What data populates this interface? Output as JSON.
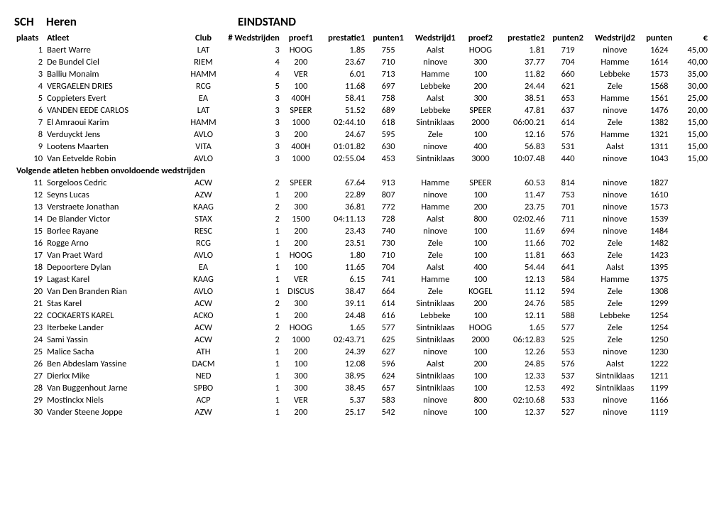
{
  "title": {
    "code": "SCH",
    "group": "Heren",
    "standing": "EINDSTAND"
  },
  "columns": [
    "plaats",
    "Atleet",
    "Club",
    "# Wedstrijden",
    "proef1",
    "prestatie1",
    "punten1",
    "Wedstrijd1",
    "proef2",
    "prestatie2",
    "punten2",
    "Wedstrijd2",
    "punten",
    "€"
  ],
  "section_label": "Volgende atleten hebben onvoldoende wedstrijden",
  "rows_top": [
    {
      "plaats": "1",
      "atleet": "Baert Warre",
      "club": "LAT",
      "wed": "3",
      "p1": "HOOG",
      "pr1": "1.85",
      "pt1": "755",
      "w1": "Aalst",
      "p2": "HOOG",
      "pr2": "1.81",
      "pt2": "719",
      "w2": "ninove",
      "punten": "1624",
      "eur": "45,00"
    },
    {
      "plaats": "2",
      "atleet": "De Bundel Ciel",
      "club": "RIEM",
      "wed": "4",
      "p1": "200",
      "pr1": "23.67",
      "pt1": "710",
      "w1": "ninove",
      "p2": "300",
      "pr2": "37.77",
      "pt2": "704",
      "w2": "Hamme",
      "punten": "1614",
      "eur": "40,00"
    },
    {
      "plaats": "3",
      "atleet": "Balliu Monaim",
      "club": "HAMM",
      "wed": "4",
      "p1": "VER",
      "pr1": "6.01",
      "pt1": "713",
      "w1": "Hamme",
      "p2": "100",
      "pr2": "11.82",
      "pt2": "660",
      "w2": "Lebbeke",
      "punten": "1573",
      "eur": "35,00"
    },
    {
      "plaats": "4",
      "atleet": "VERGAELEN DRIES",
      "club": "RCG",
      "wed": "5",
      "p1": "100",
      "pr1": "11.68",
      "pt1": "697",
      "w1": "Lebbeke",
      "p2": "200",
      "pr2": "24.44",
      "pt2": "621",
      "w2": "Zele",
      "punten": "1568",
      "eur": "30,00"
    },
    {
      "plaats": "5",
      "atleet": "Coppieters Evert",
      "club": "EA",
      "wed": "3",
      "p1": "400H",
      "pr1": "58.41",
      "pt1": "758",
      "w1": "Aalst",
      "p2": "300",
      "pr2": "38.51",
      "pt2": "653",
      "w2": "Hamme",
      "punten": "1561",
      "eur": "25,00"
    },
    {
      "plaats": "6",
      "atleet": "VANDEN EEDE CARLOS",
      "club": "LAT",
      "wed": "3",
      "p1": "SPEER",
      "pr1": "51.52",
      "pt1": "689",
      "w1": "Lebbeke",
      "p2": "SPEER",
      "pr2": "47.81",
      "pt2": "637",
      "w2": "ninove",
      "punten": "1476",
      "eur": "20,00"
    },
    {
      "plaats": "7",
      "atleet": "El Amraoui Karim",
      "club": "HAMM",
      "wed": "3",
      "p1": "1000",
      "pr1": "02:44.10",
      "pt1": "618",
      "w1": "Sintniklaas",
      "p2": "2000",
      "pr2": "06:00.21",
      "pt2": "614",
      "w2": "Zele",
      "punten": "1382",
      "eur": "15,00"
    },
    {
      "plaats": "8",
      "atleet": "Verduyckt Jens",
      "club": "AVLO",
      "wed": "3",
      "p1": "200",
      "pr1": "24.67",
      "pt1": "595",
      "w1": "Zele",
      "p2": "100",
      "pr2": "12.16",
      "pt2": "576",
      "w2": "Hamme",
      "punten": "1321",
      "eur": "15,00"
    },
    {
      "plaats": "9",
      "atleet": "Lootens Maarten",
      "club": "VITA",
      "wed": "3",
      "p1": "400H",
      "pr1": "01:01.82",
      "pt1": "630",
      "w1": "ninove",
      "p2": "400",
      "pr2": "56.83",
      "pt2": "531",
      "w2": "Aalst",
      "punten": "1311",
      "eur": "15,00"
    },
    {
      "plaats": "10",
      "atleet": "Van Eetvelde Robin",
      "club": "AVLO",
      "wed": "3",
      "p1": "1000",
      "pr1": "02:55.04",
      "pt1": "453",
      "w1": "Sintniklaas",
      "p2": "3000",
      "pr2": "10:07.48",
      "pt2": "440",
      "w2": "ninove",
      "punten": "1043",
      "eur": "15,00"
    }
  ],
  "rows_bottom": [
    {
      "plaats": "11",
      "atleet": "Sorgeloos Cedric",
      "club": "ACW",
      "wed": "2",
      "p1": "SPEER",
      "pr1": "67.64",
      "pt1": "913",
      "w1": "Hamme",
      "p2": "SPEER",
      "pr2": "60.53",
      "pt2": "814",
      "w2": "ninove",
      "punten": "1827",
      "eur": ""
    },
    {
      "plaats": "12",
      "atleet": "Seyns Lucas",
      "club": "AZW",
      "wed": "1",
      "p1": "200",
      "pr1": "22.89",
      "pt1": "807",
      "w1": "ninove",
      "p2": "100",
      "pr2": "11.47",
      "pt2": "753",
      "w2": "ninove",
      "punten": "1610",
      "eur": ""
    },
    {
      "plaats": "13",
      "atleet": "Verstraete Jonathan",
      "club": "KAAG",
      "wed": "2",
      "p1": "300",
      "pr1": "36.81",
      "pt1": "772",
      "w1": "Hamme",
      "p2": "200",
      "pr2": "23.75",
      "pt2": "701",
      "w2": "ninove",
      "punten": "1573",
      "eur": ""
    },
    {
      "plaats": "14",
      "atleet": "De Blander Victor",
      "club": "STAX",
      "wed": "2",
      "p1": "1500",
      "pr1": "04:11.13",
      "pt1": "728",
      "w1": "Aalst",
      "p2": "800",
      "pr2": "02:02.46",
      "pt2": "711",
      "w2": "ninove",
      "punten": "1539",
      "eur": ""
    },
    {
      "plaats": "15",
      "atleet": "Borlee Rayane",
      "club": "RESC",
      "wed": "1",
      "p1": "200",
      "pr1": "23.43",
      "pt1": "740",
      "w1": "ninove",
      "p2": "100",
      "pr2": "11.69",
      "pt2": "694",
      "w2": "ninove",
      "punten": "1484",
      "eur": ""
    },
    {
      "plaats": "16",
      "atleet": "Rogge Arno",
      "club": "RCG",
      "wed": "1",
      "p1": "200",
      "pr1": "23.51",
      "pt1": "730",
      "w1": "Zele",
      "p2": "100",
      "pr2": "11.66",
      "pt2": "702",
      "w2": "Zele",
      "punten": "1482",
      "eur": ""
    },
    {
      "plaats": "17",
      "atleet": "Van Praet Ward",
      "club": "AVLO",
      "wed": "1",
      "p1": "HOOG",
      "pr1": "1.80",
      "pt1": "710",
      "w1": "Zele",
      "p2": "100",
      "pr2": "11.81",
      "pt2": "663",
      "w2": "Zele",
      "punten": "1423",
      "eur": ""
    },
    {
      "plaats": "18",
      "atleet": "Depoortere Dylan",
      "club": "EA",
      "wed": "1",
      "p1": "100",
      "pr1": "11.65",
      "pt1": "704",
      "w1": "Aalst",
      "p2": "400",
      "pr2": "54.44",
      "pt2": "641",
      "w2": "Aalst",
      "punten": "1395",
      "eur": ""
    },
    {
      "plaats": "19",
      "atleet": "Lagast Karel",
      "club": "KAAG",
      "wed": "1",
      "p1": "VER",
      "pr1": "6.15",
      "pt1": "741",
      "w1": "Hamme",
      "p2": "100",
      "pr2": "12.13",
      "pt2": "584",
      "w2": "Hamme",
      "punten": "1375",
      "eur": ""
    },
    {
      "plaats": "20",
      "atleet": "Van Den Branden Rian",
      "club": "AVLO",
      "wed": "1",
      "p1": "DISCUS",
      "pr1": "38.47",
      "pt1": "664",
      "w1": "Zele",
      "p2": "KOGEL",
      "pr2": "11.12",
      "pt2": "594",
      "w2": "Zele",
      "punten": "1308",
      "eur": ""
    },
    {
      "plaats": "21",
      "atleet": "Stas Karel",
      "club": "ACW",
      "wed": "2",
      "p1": "300",
      "pr1": "39.11",
      "pt1": "614",
      "w1": "Sintniklaas",
      "p2": "200",
      "pr2": "24.76",
      "pt2": "585",
      "w2": "Zele",
      "punten": "1299",
      "eur": ""
    },
    {
      "plaats": "22",
      "atleet": "COCKAERTS KAREL",
      "club": "ACKO",
      "wed": "1",
      "p1": "200",
      "pr1": "24.48",
      "pt1": "616",
      "w1": "Lebbeke",
      "p2": "100",
      "pr2": "12.11",
      "pt2": "588",
      "w2": "Lebbeke",
      "punten": "1254",
      "eur": ""
    },
    {
      "plaats": "23",
      "atleet": "Iterbeke Lander",
      "club": "ACW",
      "wed": "2",
      "p1": "HOOG",
      "pr1": "1.65",
      "pt1": "577",
      "w1": "Sintniklaas",
      "p2": "HOOG",
      "pr2": "1.65",
      "pt2": "577",
      "w2": "Zele",
      "punten": "1254",
      "eur": ""
    },
    {
      "plaats": "24",
      "atleet": "Sami Yassin",
      "club": "ACW",
      "wed": "2",
      "p1": "1000",
      "pr1": "02:43.71",
      "pt1": "625",
      "w1": "Sintniklaas",
      "p2": "2000",
      "pr2": "06:12.83",
      "pt2": "525",
      "w2": "Zele",
      "punten": "1250",
      "eur": ""
    },
    {
      "plaats": "25",
      "atleet": "Malice Sacha",
      "club": "ATH",
      "wed": "1",
      "p1": "200",
      "pr1": "24.39",
      "pt1": "627",
      "w1": "ninove",
      "p2": "100",
      "pr2": "12.26",
      "pt2": "553",
      "w2": "ninove",
      "punten": "1230",
      "eur": ""
    },
    {
      "plaats": "26",
      "atleet": "Ben Abdeslam Yassine",
      "club": "DACM",
      "wed": "1",
      "p1": "100",
      "pr1": "12.08",
      "pt1": "596",
      "w1": "Aalst",
      "p2": "200",
      "pr2": "24.85",
      "pt2": "576",
      "w2": "Aalst",
      "punten": "1222",
      "eur": ""
    },
    {
      "plaats": "27",
      "atleet": "Dierkx Mike",
      "club": "NED",
      "wed": "1",
      "p1": "300",
      "pr1": "38.95",
      "pt1": "624",
      "w1": "Sintniklaas",
      "p2": "100",
      "pr2": "12.33",
      "pt2": "537",
      "w2": "Sintniklaas",
      "punten": "1211",
      "eur": ""
    },
    {
      "plaats": "28",
      "atleet": "Van Buggenhout Jarne",
      "club": "SPBO",
      "wed": "1",
      "p1": "300",
      "pr1": "38.45",
      "pt1": "657",
      "w1": "Sintniklaas",
      "p2": "100",
      "pr2": "12.53",
      "pt2": "492",
      "w2": "Sintniklaas",
      "punten": "1199",
      "eur": ""
    },
    {
      "plaats": "29",
      "atleet": "Mostinckx Niels",
      "club": "ACP",
      "wed": "1",
      "p1": "VER",
      "pr1": "5.37",
      "pt1": "583",
      "w1": "ninove",
      "p2": "800",
      "pr2": "02:10.68",
      "pt2": "533",
      "w2": "ninove",
      "punten": "1166",
      "eur": ""
    },
    {
      "plaats": "30",
      "atleet": "Vander Steene Joppe",
      "club": "AZW",
      "wed": "1",
      "p1": "200",
      "pr1": "25.17",
      "pt1": "542",
      "w1": "ninove",
      "p2": "100",
      "pr2": "12.37",
      "pt2": "527",
      "w2": "ninove",
      "punten": "1119",
      "eur": ""
    }
  ]
}
